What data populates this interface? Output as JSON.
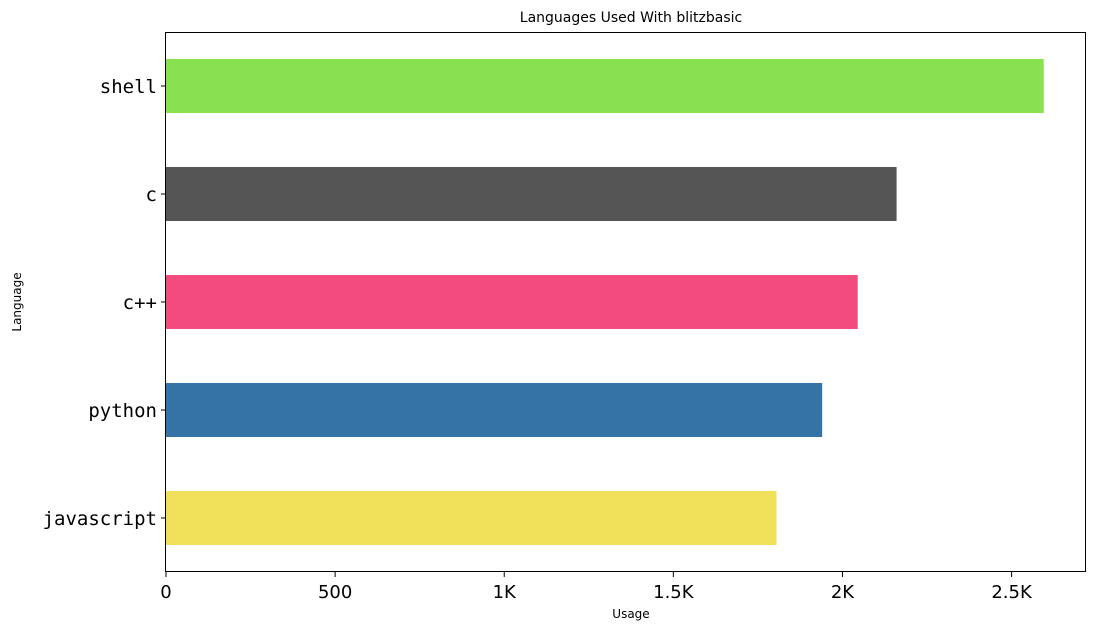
{
  "chart_data": {
    "type": "bar",
    "orientation": "horizontal",
    "title": "Languages Used With blitzbasic",
    "xlabel": "Usage",
    "ylabel": "Language",
    "categories": [
      "javascript",
      "python",
      "c++",
      "c",
      "shell"
    ],
    "values": [
      1805,
      1940,
      2045,
      2160,
      2595
    ],
    "colors": [
      "#f0e05a",
      "#3572a5",
      "#f34b7d",
      "#555555",
      "#89e051"
    ],
    "xlim": [
      0,
      2720
    ],
    "xticks": [
      0,
      500,
      1000,
      1500,
      2000,
      2500
    ],
    "xtick_labels": [
      "0",
      "500",
      "1K",
      "1.5K",
      "2K",
      "2.5K"
    ],
    "grid": false,
    "legend": false
  }
}
